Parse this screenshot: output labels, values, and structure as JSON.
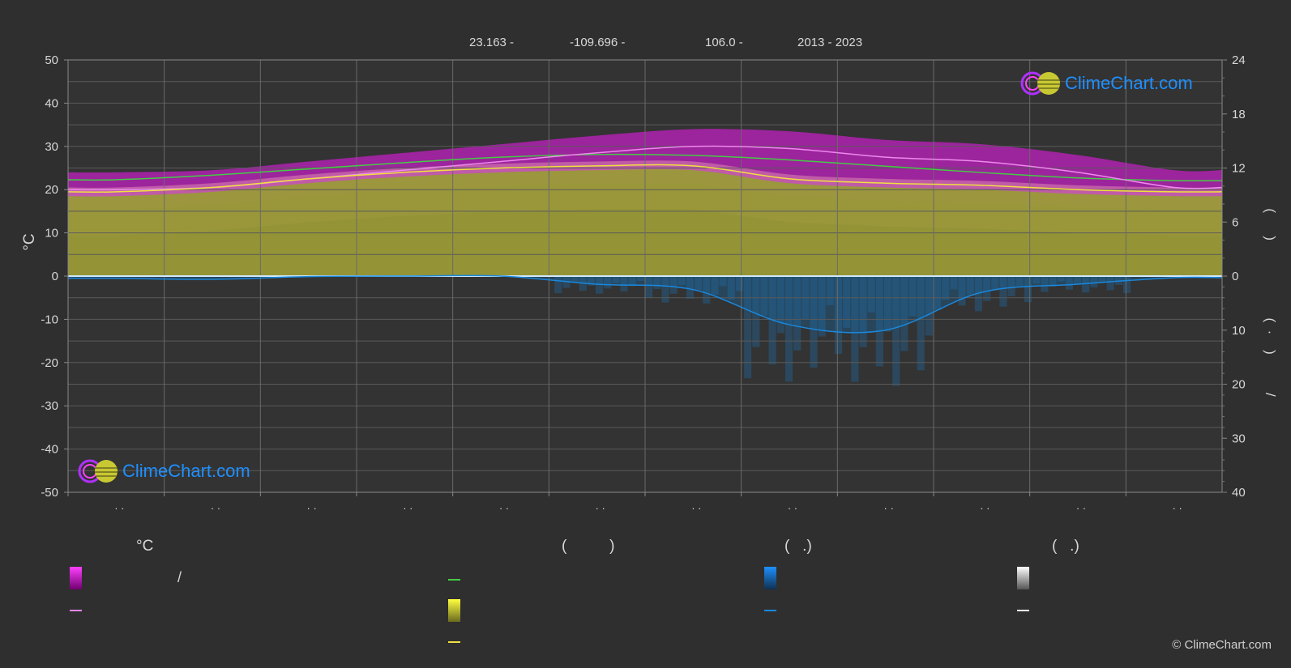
{
  "header": {
    "lat": "23.163 -",
    "lon": "-109.696 -",
    "elev": "106.0 -",
    "years": "2013 - 2023"
  },
  "chart_data": {
    "type": "area",
    "months": [
      "· ·",
      "· ·",
      "· ·",
      "· ·",
      "· ·",
      "· ·",
      "· ·",
      "· ·",
      "· ·",
      "· ·",
      "· ·",
      "· ·"
    ],
    "left_axis": {
      "label": "°C",
      "range": [
        -50,
        50
      ],
      "ticks": [
        50,
        40,
        30,
        20,
        10,
        0,
        -10,
        -20,
        -30,
        -40,
        -50
      ]
    },
    "right_axis_top": {
      "label": "( )",
      "range": [
        0,
        24
      ],
      "ticks": [
        24,
        18,
        12,
        6,
        0
      ]
    },
    "right_axis_bottom": {
      "label": "( · ) /",
      "range": [
        0,
        40
      ],
      "ticks": [
        10,
        20,
        30,
        40
      ]
    },
    "series": [
      {
        "key": "max_temp",
        "color": "#ee88ee",
        "values": [
          20.0,
          20.5,
          22.5,
          24.5,
          26.5,
          28.5,
          30.0,
          29.5,
          27.5,
          26.5,
          24.0,
          20.5
        ]
      },
      {
        "key": "mean_temp",
        "color": "#f0e040",
        "values": [
          19.5,
          20.5,
          22.5,
          24.0,
          25.0,
          25.5,
          25.5,
          22.5,
          21.5,
          21.0,
          20.0,
          19.5
        ]
      },
      {
        "key": "daylight",
        "color": "#44cc44",
        "values": [
          10.7,
          11.2,
          11.9,
          12.6,
          13.2,
          13.5,
          13.4,
          12.9,
          12.2,
          11.5,
          10.9,
          10.6
        ]
      },
      {
        "key": "precip",
        "color": "#1a88dd",
        "values": [
          0.4,
          0.6,
          0.1,
          0.0,
          0.0,
          1.5,
          2.5,
          9.0,
          10.0,
          3.0,
          1.5,
          0.3
        ]
      }
    ],
    "grid": true
  },
  "logo": {
    "text": "ClimeChart.com"
  },
  "legend": {
    "col1_title": "°C",
    "col1_row1_sep": "/",
    "col2_title": "(          )",
    "col3_title": "(   .)",
    "col4_title": "(   .)"
  },
  "copyright": "© ClimeChart.com",
  "colors": {
    "accent": "#1e90ff",
    "magenta": "#ff00ff",
    "yellow": "#e6e600"
  }
}
